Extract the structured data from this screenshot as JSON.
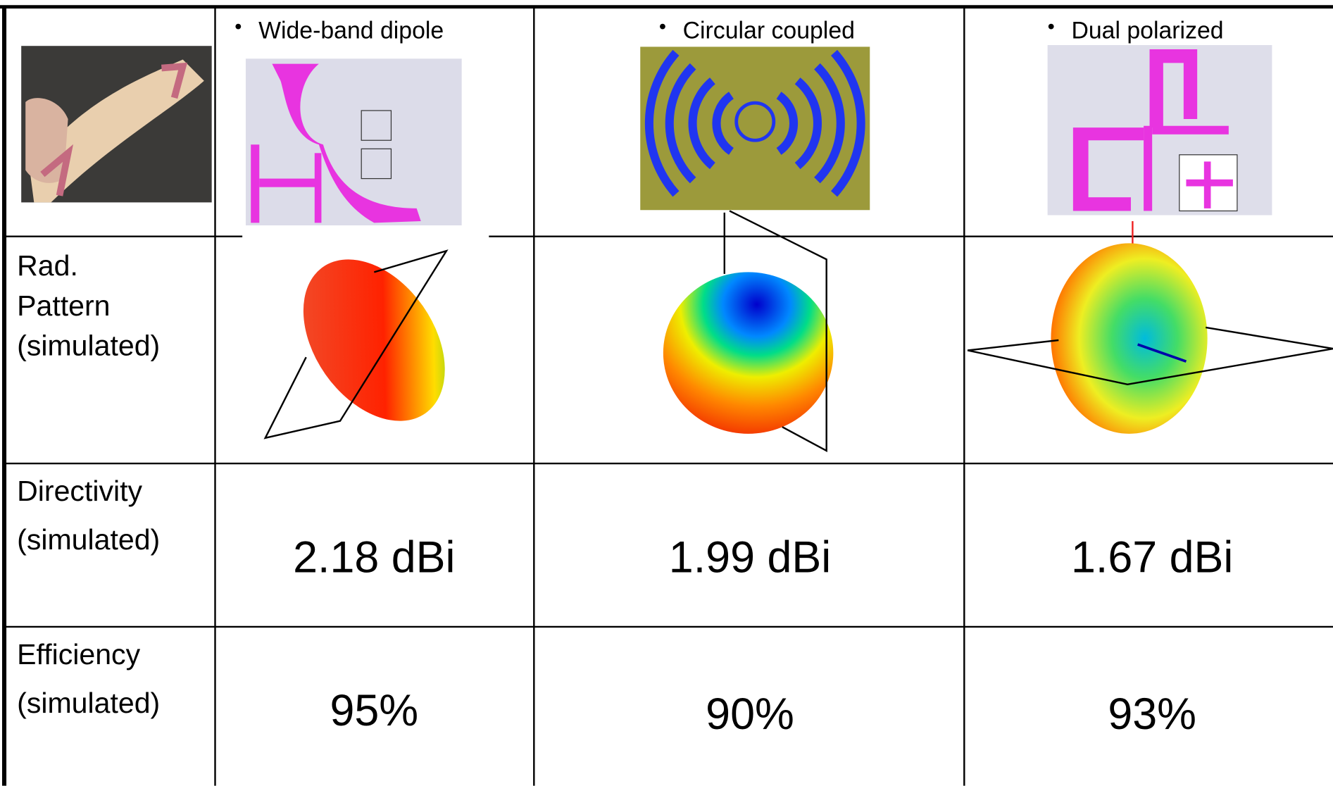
{
  "table": {
    "columns": [
      "Wide-band dipole",
      "Circular coupled",
      "Dual polarized"
    ],
    "rows": [
      {
        "label": "Rad.\nPattern\n(simulated)"
      },
      {
        "label": "Directivity\n(simulated)",
        "values": [
          "2.18 dBi",
          "1.99 dBi",
          "1.67 dBi"
        ]
      },
      {
        "label": "Efficiency\n(simulated)",
        "values": [
          "95%",
          "90%",
          "93%"
        ]
      }
    ]
  }
}
